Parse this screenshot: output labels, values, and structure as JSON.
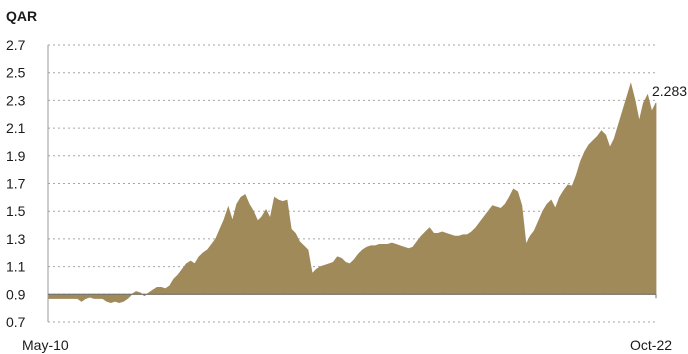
{
  "chart_data": {
    "type": "area",
    "title": "",
    "unit_label": "QAR",
    "xlabel": "",
    "ylabel": "",
    "ylim": [
      0.7,
      2.7
    ],
    "yticks": [
      0.7,
      0.9,
      1.1,
      1.3,
      1.5,
      1.7,
      1.9,
      2.1,
      2.3,
      2.5,
      2.7
    ],
    "ytick_labels": [
      "0.7",
      "0.9",
      "1.1",
      "1.3",
      "1.5",
      "1.7",
      "1.9",
      "2.1",
      "2.3",
      "2.5",
      "2.7"
    ],
    "x_start_label": "May-10",
    "x_end_label": "Oct-22",
    "grid": true,
    "baseline": 0.9,
    "fill_color": "#a18a5a",
    "last_value_label": "2.283",
    "series": [
      {
        "values": [
          0.87,
          0.87,
          0.87,
          0.87,
          0.87,
          0.87,
          0.87,
          0.87,
          0.85,
          0.87,
          0.88,
          0.87,
          0.87,
          0.87,
          0.85,
          0.84,
          0.85,
          0.84,
          0.85,
          0.87,
          0.9,
          0.92,
          0.91,
          0.89,
          0.91,
          0.93,
          0.95,
          0.95,
          0.94,
          0.96,
          1.01,
          1.04,
          1.08,
          1.12,
          1.14,
          1.12,
          1.17,
          1.2,
          1.22,
          1.26,
          1.3,
          1.37,
          1.44,
          1.53,
          1.43,
          1.55,
          1.6,
          1.62,
          1.55,
          1.5,
          1.43,
          1.46,
          1.51,
          1.45,
          1.6,
          1.58,
          1.57,
          1.58,
          1.37,
          1.34,
          1.28,
          1.25,
          1.22,
          1.05,
          1.08,
          1.1,
          1.11,
          1.12,
          1.13,
          1.17,
          1.16,
          1.13,
          1.12,
          1.15,
          1.19,
          1.22,
          1.24,
          1.25,
          1.25,
          1.26,
          1.26,
          1.26,
          1.27,
          1.26,
          1.25,
          1.24,
          1.23,
          1.24,
          1.28,
          1.32,
          1.35,
          1.38,
          1.34,
          1.34,
          1.35,
          1.34,
          1.33,
          1.32,
          1.32,
          1.33,
          1.33,
          1.35,
          1.38,
          1.42,
          1.46,
          1.5,
          1.54,
          1.53,
          1.52,
          1.55,
          1.6,
          1.66,
          1.64,
          1.54,
          1.26,
          1.32,
          1.36,
          1.43,
          1.5,
          1.55,
          1.58,
          1.52,
          1.6,
          1.65,
          1.69,
          1.68,
          1.76,
          1.86,
          1.93,
          1.98,
          2.01,
          2.04,
          2.08,
          2.05,
          1.96,
          2.02,
          2.12,
          2.22,
          2.32,
          2.42,
          2.3,
          2.15,
          2.28,
          2.34,
          2.22,
          2.283
        ]
      }
    ]
  }
}
